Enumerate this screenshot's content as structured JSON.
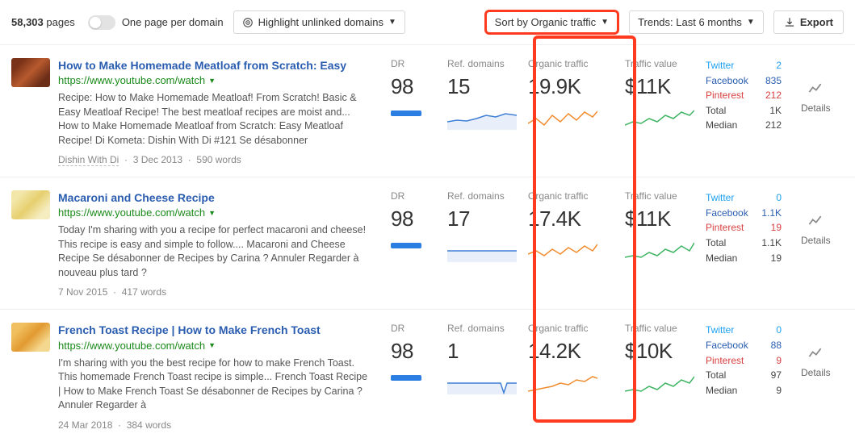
{
  "toolbar": {
    "pages_count": "58,303",
    "pages_label": "pages",
    "toggle_label": "One page per domain",
    "highlight_label": "Highlight unlinked domains",
    "sort_label": "Sort by Organic traffic",
    "trends_label": "Trends: Last 6 months",
    "export_label": "Export"
  },
  "metric_labels": {
    "dr": "DR",
    "rd": "Ref. domains",
    "ot": "Organic traffic",
    "tv": "Traffic value",
    "details": "Details"
  },
  "social_labels": {
    "twitter": "Twitter",
    "facebook": "Facebook",
    "pinterest": "Pinterest",
    "total": "Total",
    "median": "Median"
  },
  "colors": {
    "dr_bar": "#2a7de1",
    "rd_spark": "#3e7fd6",
    "ot_spark": "#f08c2e",
    "tv_spark": "#3fb563",
    "highlight_border": "#ff3b1f"
  },
  "rows": [
    {
      "title": "How to Make Homemade Meatloaf from Scratch: Easy",
      "url": "https://www.youtube.com/watch",
      "desc": "Recipe: How to Make Homemade Meatloaf! From Scratch! Basic & Easy Meatloaf Recipe! The best meatloaf recipes are moist and... How to Make Homemade Meatloaf from Scratch: Easy Meatloaf Recipe! Di Kometa: Dishin With Di #121 Se désabonner",
      "source": "Dishin With Di",
      "date": "3 Dec 2013",
      "words": "590 words",
      "dr": "98",
      "rd": "15",
      "ot": "19.9K",
      "tv": "$11K",
      "social": {
        "twitter": "2",
        "facebook": "835",
        "pinterest": "212",
        "total": "1K",
        "median": "212"
      },
      "sparks": {
        "rd": "0,18 12,16 24,17 36,14 48,10 60,12 72,8 86,10",
        "ot": "0,20 10,14 20,22 30,10 40,18 50,8 60,16 70,6 80,12 86,5",
        "tv": "0,22 10,18 20,20 30,14 40,18 50,10 60,14 70,6 80,10 86,4"
      }
    },
    {
      "title": "Macaroni and Cheese Recipe",
      "url": "https://www.youtube.com/watch",
      "desc": "Today I'm sharing with you a recipe for perfect macaroni and cheese! This recipe is easy and simple to follow.... Macaroni and Cheese Recipe Se désabonner de Recipes by Carina ? Annuler Regarder à nouveau plus tard ?",
      "source": "",
      "date": "7 Nov 2015",
      "words": "417 words",
      "dr": "98",
      "rd": "17",
      "ot": "17.4K",
      "tv": "$11K",
      "social": {
        "twitter": "0",
        "facebook": "1.1K",
        "pinterest": "19",
        "total": "1.1K",
        "median": "19"
      },
      "sparks": {
        "rd": "0,14 14,14 28,14 42,14 56,14 70,14 86,14",
        "ot": "0,18 10,14 20,20 30,12 40,18 50,10 60,16 70,8 80,14 86,6",
        "tv": "0,22 10,20 20,22 30,16 40,20 50,12 60,16 70,8 80,14 86,4"
      }
    },
    {
      "title": "French Toast Recipe | How to Make French Toast",
      "url": "https://www.youtube.com/watch",
      "desc": "I'm sharing with you the best recipe for how to make French Toast. This homemade French Toast recipe is simple... French Toast Recipe | How to Make French Toast Se désabonner de Recipes by Carina ? Annuler Regarder à",
      "source": "",
      "date": "24 Mar 2018",
      "words": "384 words",
      "dr": "98",
      "rd": "1",
      "ot": "14.2K",
      "tv": "$10K",
      "social": {
        "twitter": "0",
        "facebook": "88",
        "pinterest": "9",
        "total": "97",
        "median": "9"
      },
      "sparks": {
        "rd": "0,14 14,14 28,14 42,14 56,14 66,14 70,26 74,14 86,14",
        "ot": "0,24 10,22 20,20 30,18 40,14 50,16 60,10 70,12 80,6 86,8",
        "tv": "0,24 10,22 20,24 30,18 40,22 50,14 60,18 70,10 80,14 86,6"
      }
    }
  ]
}
